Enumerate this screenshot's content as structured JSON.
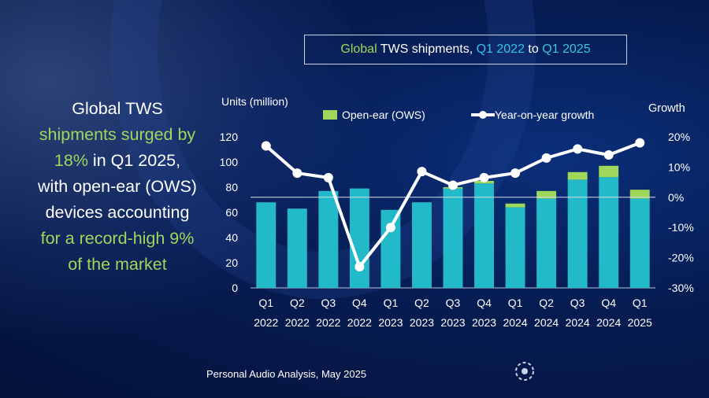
{
  "title": {
    "part1": "Global",
    "part2": " TWS shipments, ",
    "part3": "Q1 2022",
    "part4": " to ",
    "part5": "Q1 2025"
  },
  "headline": {
    "l1": "Global TWS",
    "l2": "shipments surged by",
    "l3a": "18%",
    "l3b": " in Q1 2025,",
    "l4": "with open-ear (OWS)",
    "l5": "devices accounting",
    "l6": "for a record-high 9%",
    "l7": "of the market"
  },
  "source": "Personal Audio Analysis, May 2025",
  "chart_data": {
    "type": "bar",
    "ylabel": "Units (million)",
    "y2label": "Growth",
    "ylim": [
      0,
      120
    ],
    "yticks": [
      0,
      20,
      40,
      60,
      80,
      100,
      120
    ],
    "y2lim": [
      -30,
      20
    ],
    "y2ticks": [
      "20%",
      "10%",
      "0%",
      "-10%",
      "-20%",
      "-30%"
    ],
    "categories": [
      [
        "Q1",
        "2022"
      ],
      [
        "Q2",
        "2022"
      ],
      [
        "Q3",
        "2022"
      ],
      [
        "Q4",
        "2022"
      ],
      [
        "Q1",
        "2023"
      ],
      [
        "Q2",
        "2023"
      ],
      [
        "Q3",
        "2023"
      ],
      [
        "Q4",
        "2023"
      ],
      [
        "Q1",
        "2024"
      ],
      [
        "Q2",
        "2024"
      ],
      [
        "Q3",
        "2024"
      ],
      [
        "Q4",
        "2024"
      ],
      [
        "Q1",
        "2025"
      ]
    ],
    "series": [
      {
        "name": "",
        "type": "bar-stack-base",
        "color": "#22b9c9",
        "values": [
          68,
          63,
          77,
          79,
          62,
          68,
          79,
          83,
          64,
          71,
          86,
          88,
          71
        ]
      },
      {
        "name": "Open-ear (OWS)",
        "type": "bar-stack-top",
        "color": "#9fd75b",
        "values": [
          0,
          0,
          0,
          0,
          0,
          0,
          1,
          2,
          3,
          6,
          6,
          9,
          7
        ]
      },
      {
        "name": "Year-on-year growth",
        "type": "line",
        "color": "#ffffff",
        "values": [
          17,
          8,
          6.5,
          -23,
          -10,
          8.5,
          4,
          6.5,
          8,
          13,
          16,
          14,
          18
        ]
      }
    ]
  }
}
